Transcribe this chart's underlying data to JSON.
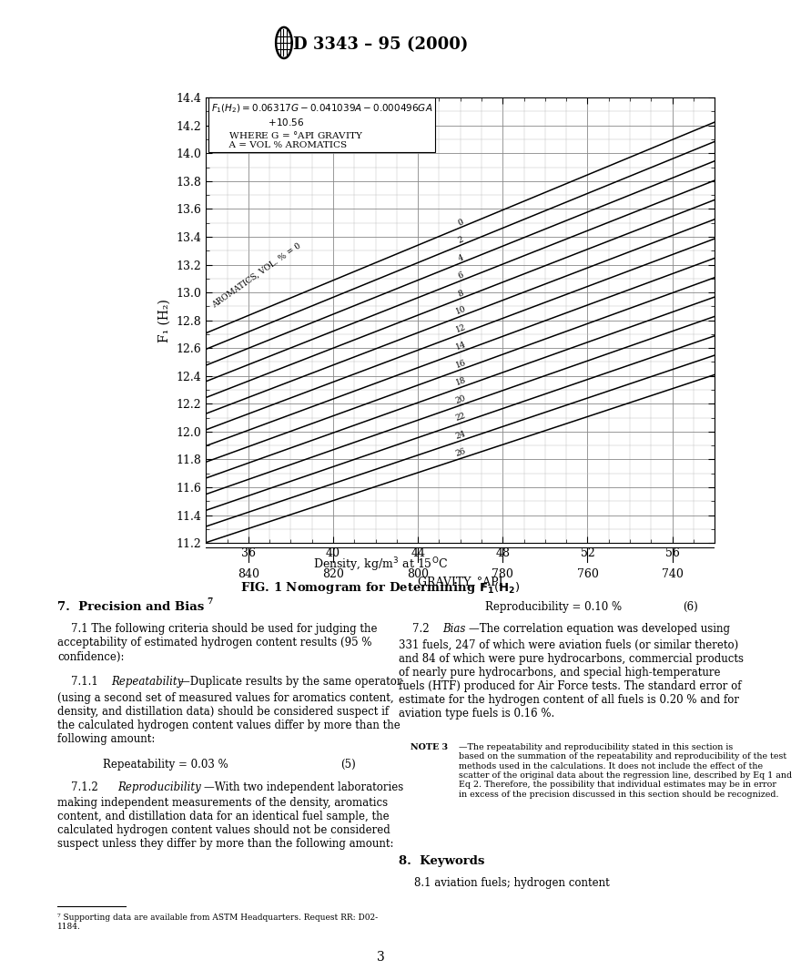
{
  "page_title": "D 3343 – 95 (2000)",
  "gravity_axis_label": "GRAVITY, °API",
  "y_label": "F₁ (H₂)",
  "gravity_ticks": [
    36,
    40,
    44,
    48,
    52,
    56
  ],
  "gravity_tick_labels": [
    "36",
    "40",
    "44",
    "48",
    "52",
    "56"
  ],
  "density_ticks": [
    840,
    820,
    800,
    780,
    760,
    740
  ],
  "ylim": [
    11.2,
    14.4
  ],
  "xlim": [
    34,
    58
  ],
  "y_major_ticks": [
    11.2,
    11.4,
    11.6,
    11.8,
    12.0,
    12.2,
    12.4,
    12.6,
    12.8,
    13.0,
    13.2,
    13.4,
    13.6,
    13.8,
    14.0,
    14.2,
    14.4
  ],
  "aromatics_values": [
    0,
    2,
    4,
    6,
    8,
    10,
    12,
    14,
    16,
    18,
    20,
    22,
    24,
    26
  ],
  "section7_title": "7.  Precision and Bias ",
  "section7_p1": "7.1 The following criteria should be used for judging the acceptability of estimated hydrogen content results (95 % confidence):",
  "repeatability_eq": "Repeatability = 0.03 %",
  "repeatability_num": "(5)",
  "reproducibility_eq": "Reproducibility = 0.10 %",
  "reproducibility_num": "(6)",
  "section72_text": "7.2 Bias—The correlation equation was developed using 331 fuels, 247 of which were aviation fuels (or similar thereto) and 84 of which were pure hydrocarbons, commercial products of nearly pure hydrocarbons, and special high-temperature fuels (HTF) produced for Air Force tests. The standard error of estimate for the hydrogen content of all fuels is 0.20 % and for aviation type fuels is 0.16 %.",
  "note3_text": "NOTE 3—The repeatability and reproducibility stated in this section is based on the summation of the repeatability and reproducibility of the test methods used in the calculations. It does not include the effect of the scatter of the original data about the regression line, described by Eq 1 and Eq 2. Therefore, the possibility that individual estimates may be in error in excess of the precision discussed in this section should be recognized.",
  "section8_title": "8.  Keywords",
  "section81_text": "8.1 aviation fuels; hydrogen content",
  "footnote7": "⁷ Supporting data are available from ASTM Headquarters. Request RR: D02-1184.",
  "page_number": "3",
  "background_color": "#ffffff",
  "text_color": "#000000",
  "grid_color": "#888888"
}
